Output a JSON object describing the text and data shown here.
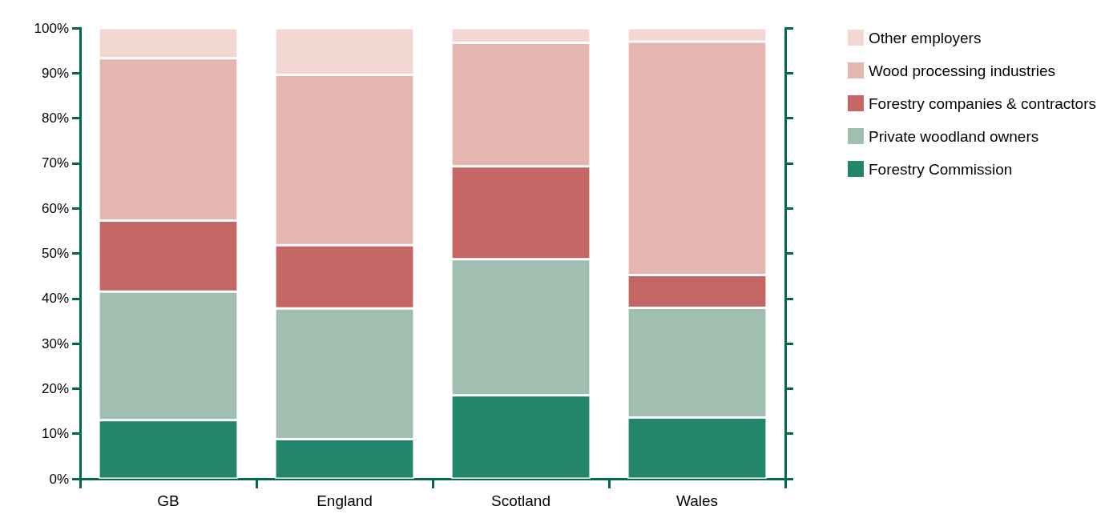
{
  "chart_data": {
    "type": "bar",
    "stacked": true,
    "categories": [
      "GB",
      "England",
      "Scotland",
      "Wales"
    ],
    "series": [
      {
        "name": "Forestry Commission",
        "color": "#23866a",
        "values": [
          13,
          8.8,
          18.5,
          13.6
        ]
      },
      {
        "name": "Private woodland owners",
        "color": "#a0bfb0",
        "values": [
          28.5,
          29,
          30.2,
          24.3
        ]
      },
      {
        "name": "Forestry companies & contractors",
        "color": "#c46664",
        "values": [
          15.8,
          14,
          20.6,
          7.3
        ]
      },
      {
        "name": "Wood processing industries",
        "color": "#e5b5b0",
        "values": [
          36,
          37.8,
          27.4,
          51.8
        ]
      },
      {
        "name": "Other employers",
        "color": "#f2d7d3",
        "values": [
          6.7,
          10.4,
          3.3,
          3
        ]
      }
    ],
    "ylim": [
      0,
      100
    ],
    "yticks": [
      {
        "value": 0,
        "label": "0%"
      },
      {
        "value": 10,
        "label": "10%"
      },
      {
        "value": 20,
        "label": "20%"
      },
      {
        "value": 30,
        "label": "30%"
      },
      {
        "value": 40,
        "label": "40%"
      },
      {
        "value": 50,
        "label": "50%"
      },
      {
        "value": 60,
        "label": "60%"
      },
      {
        "value": 70,
        "label": "70%"
      },
      {
        "value": 80,
        "label": "80%"
      },
      {
        "value": 90,
        "label": "90%"
      },
      {
        "value": 100,
        "label": "100%"
      }
    ],
    "grid": false,
    "legend": "top right"
  }
}
